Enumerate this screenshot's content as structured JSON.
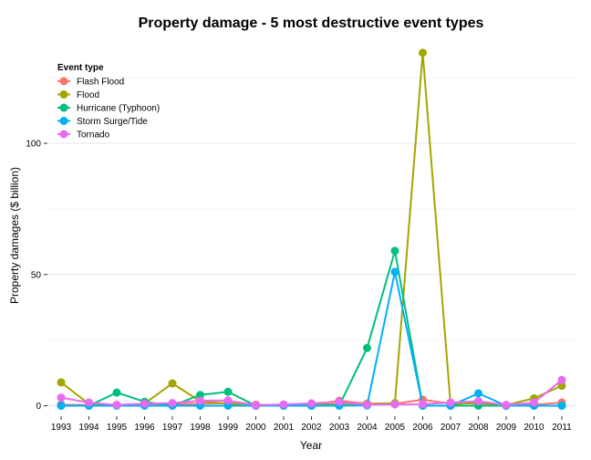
{
  "chart_data": {
    "type": "line",
    "title": "Property damage - 5 most destructive event types",
    "xlabel": "Year",
    "ylabel": "Property damages ($ billion)",
    "x": [
      "1993",
      "1994",
      "1995",
      "1996",
      "1997",
      "1998",
      "1999",
      "2000",
      "2001",
      "2002",
      "2003",
      "2004",
      "2005",
      "2006",
      "2007",
      "2008",
      "2009",
      "2010",
      "2011"
    ],
    "ylim": [
      -4,
      140
    ],
    "yticks": [
      0,
      50,
      100
    ],
    "grid": true,
    "legend_title": "Event type",
    "legend_position": "top-left",
    "series": [
      {
        "name": "Flash Flood",
        "color": "#f8766d",
        "values": [
          0.4,
          0.2,
          0.3,
          0.6,
          0.6,
          0.8,
          1.0,
          0.4,
          0.3,
          0.4,
          1.9,
          0.8,
          0.8,
          2.3,
          0.8,
          0.9,
          0.1,
          0.4,
          1.2
        ]
      },
      {
        "name": "Flood",
        "color": "#a3a500",
        "values": [
          8.9,
          0.7,
          0.2,
          0.8,
          8.5,
          1.7,
          0.8,
          0.2,
          0.2,
          0.4,
          0.6,
          0.7,
          1.0,
          134.5,
          0.5,
          1.2,
          0.2,
          2.8,
          7.6
        ]
      },
      {
        "name": "Hurricane (Typhoon)",
        "color": "#00bf7d",
        "values": [
          0,
          0,
          5.0,
          1.5,
          0,
          4.1,
          5.3,
          0,
          0,
          0,
          0.03,
          22.0,
          59.0,
          0,
          0,
          0,
          0,
          0,
          0
        ]
      },
      {
        "name": "Storm Surge/Tide",
        "color": "#00b0f6",
        "values": [
          0,
          0,
          0,
          0,
          0,
          0,
          0,
          0,
          0,
          0,
          0,
          0.1,
          51.0,
          0,
          0,
          4.7,
          0,
          0,
          0
        ]
      },
      {
        "name": "Tornado",
        "color": "#e76bf3",
        "values": [
          3.1,
          1.2,
          0.3,
          0.8,
          1.0,
          1.9,
          2.0,
          0.2,
          0.5,
          0.9,
          1.5,
          0.4,
          0.5,
          0.6,
          1.2,
          1.7,
          0.3,
          1.2,
          9.8
        ]
      }
    ]
  }
}
